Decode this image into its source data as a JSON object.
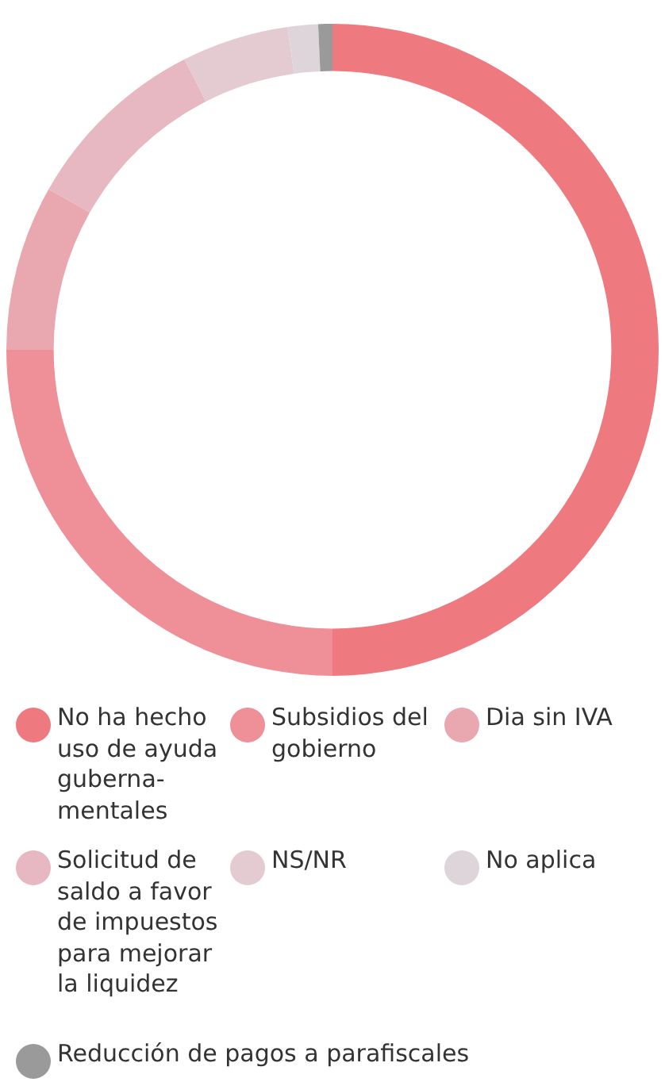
{
  "chart_data": {
    "type": "donut",
    "categories": [
      "No ha hecho uso de ayuda guberna-mentales",
      "Subsidios del gobierno",
      "Dia sin IVA",
      "Solicitud de saldo a favor de impuestos para mejorar la liquidez",
      "NS/NR",
      "No aplica",
      "Reducción de pagos a parafiscales"
    ],
    "values": [
      50,
      25,
      8.2,
      9.3,
      5.3,
      1.5,
      0.7
    ],
    "colors": [
      "#ee7a80",
      "#ef9098",
      "#e9a7b0",
      "#e8b8c2",
      "#e3cbd1",
      "#ddd5d9",
      "#9a9a9a"
    ],
    "legend": "bottom"
  }
}
